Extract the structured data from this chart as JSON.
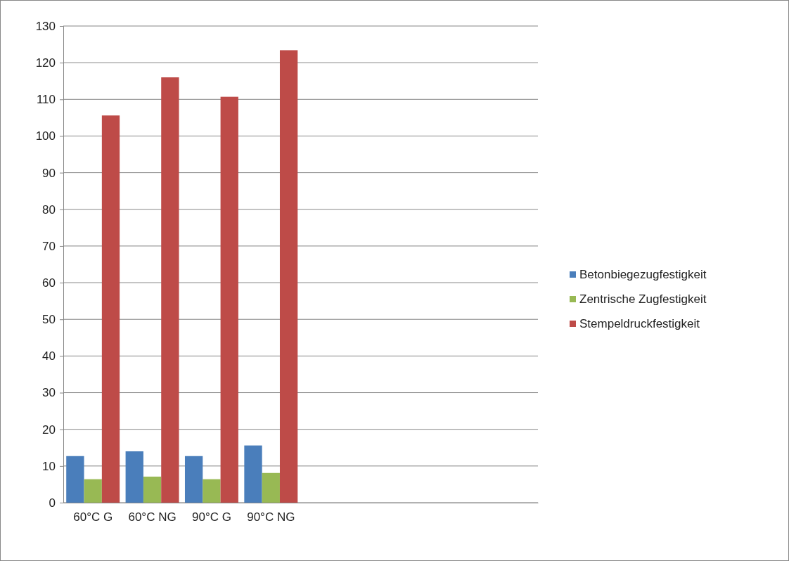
{
  "chart_data": {
    "type": "bar",
    "categories": [
      "60°C G",
      "60°C NG",
      "90°C G",
      "90°C NG",
      null,
      null,
      null,
      null
    ],
    "series": [
      {
        "name": "Betonbiegezugfestigkeit",
        "color": "#4a7ebb",
        "values": [
          12.7,
          14.0,
          12.7,
          15.6,
          null,
          null,
          null,
          null
        ]
      },
      {
        "name": "Zentrische Zugfestigkeit",
        "color": "#98b954",
        "values": [
          6.4,
          7.1,
          6.4,
          8.1,
          null,
          null,
          null,
          null
        ]
      },
      {
        "name": "Stempeldruckfestigkeit",
        "color": "#be4b48",
        "values": [
          105.6,
          116.0,
          110.7,
          123.4,
          null,
          null,
          null,
          null
        ]
      }
    ],
    "ylim": [
      0,
      130
    ],
    "yticks": [
      0,
      10,
      20,
      30,
      40,
      50,
      60,
      70,
      80,
      90,
      100,
      110,
      120,
      130
    ],
    "grid": "y",
    "legend": "right"
  }
}
